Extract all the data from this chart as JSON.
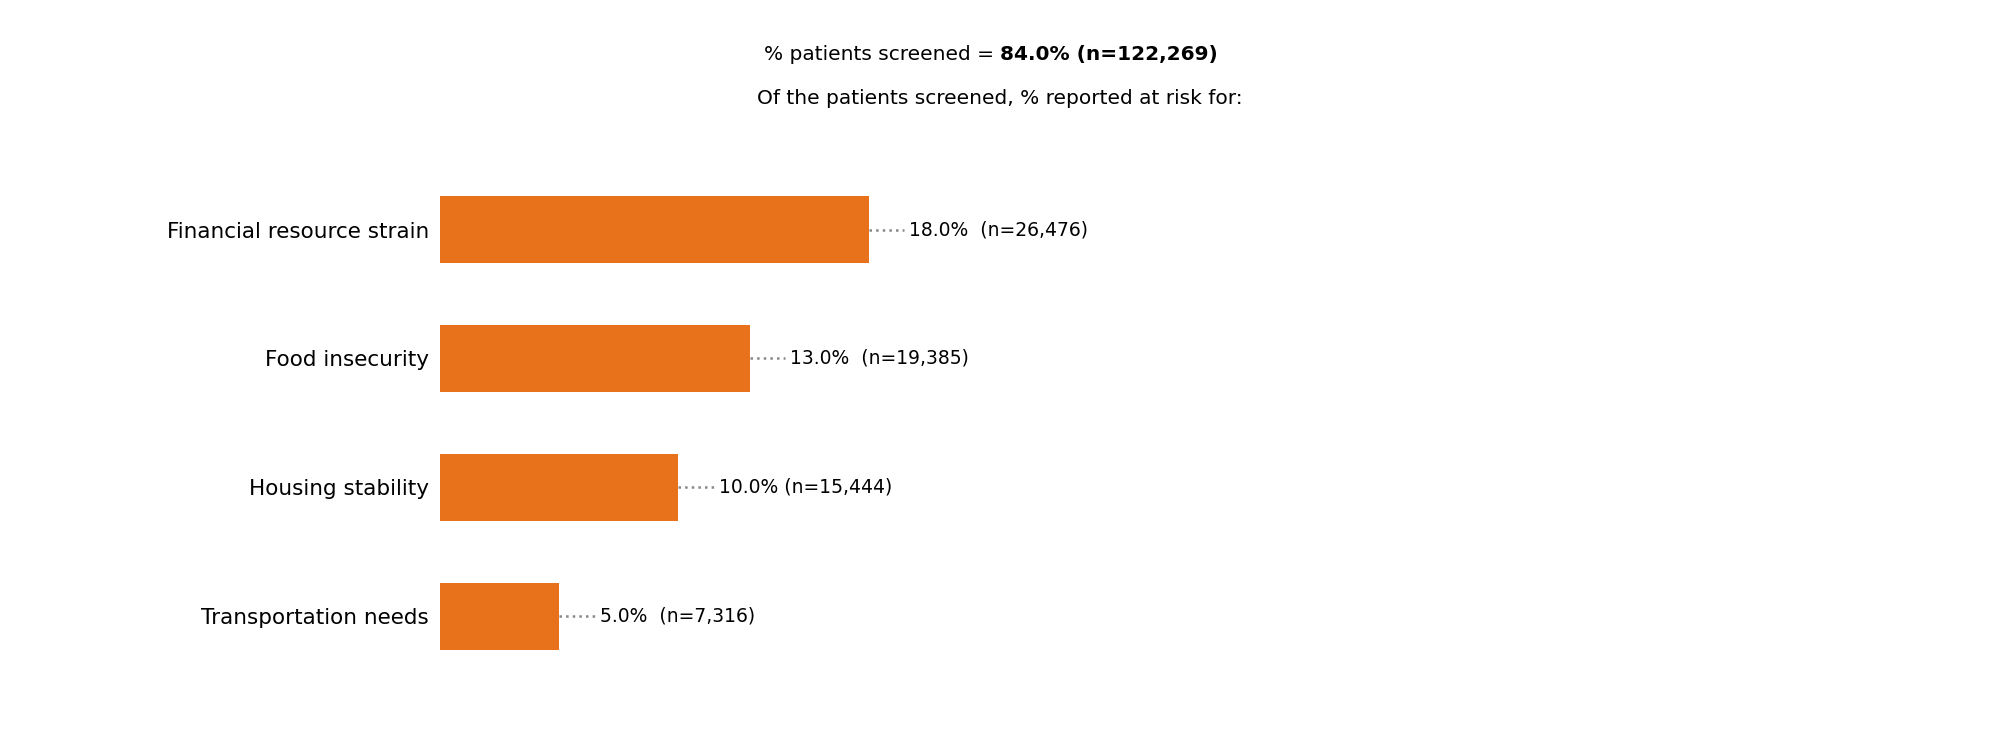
{
  "title_line1_plain": "% patients screened = ",
  "title_line1_bold": "84.0% (n=122,269)",
  "title_line2": "Of the patients screened, % reported at risk for:",
  "categories": [
    "Financial resource strain",
    "Food insecurity",
    "Housing stability",
    "Transportation needs"
  ],
  "values": [
    18.0,
    13.0,
    10.0,
    5.0
  ],
  "labels": [
    "18.0%  (n=26,476)",
    "13.0%  (n=19,385)",
    "10.0% (n=15,444)",
    "5.0%  (n=7,316)"
  ],
  "bar_color": "#E8721C",
  "background_color": "#ffffff",
  "bar_height": 0.52,
  "xlim": [
    0,
    42
  ],
  "title_fontsize": 14.5,
  "label_fontsize": 13.5,
  "category_fontsize": 15.5,
  "dotted_line_color": "#888888"
}
